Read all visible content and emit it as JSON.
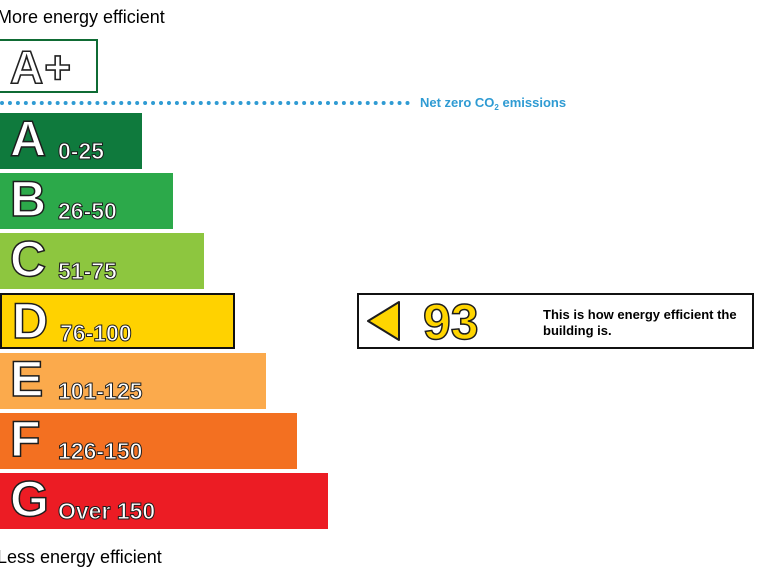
{
  "header": {
    "more_efficient": "More energy efficient"
  },
  "footer": {
    "less_efficient": "Less energy efficient"
  },
  "aplus": {
    "label": "A+",
    "border_color": "#0f6b34"
  },
  "net_zero": {
    "text_main": "Net zero CO",
    "text_sub": "2",
    "text_end": " emissions",
    "color": "#2f9bd3"
  },
  "chart_data": {
    "type": "bar",
    "title": "",
    "bands": [
      {
        "letter": "A",
        "range": "0-25",
        "color": "#0f7a3d",
        "max_score": 25
      },
      {
        "letter": "B",
        "range": "26-50",
        "color": "#2ca94a",
        "max_score": 50
      },
      {
        "letter": "C",
        "range": "51-75",
        "color": "#8dc63f",
        "max_score": 75
      },
      {
        "letter": "D",
        "range": "76-100",
        "color": "#ffd200",
        "max_score": 100
      },
      {
        "letter": "E",
        "range": "101-125",
        "color": "#fbaa4c",
        "max_score": 125
      },
      {
        "letter": "F",
        "range": "126-150",
        "color": "#f37021",
        "max_score": 150
      },
      {
        "letter": "G",
        "range": "Over 150",
        "color": "#ec1c24",
        "max_score": 175
      }
    ],
    "current_score": 93,
    "current_band": "D"
  },
  "indicator": {
    "score": "93",
    "description": "This is how energy efficient the building is.",
    "arrow_color": "#ffd500"
  }
}
